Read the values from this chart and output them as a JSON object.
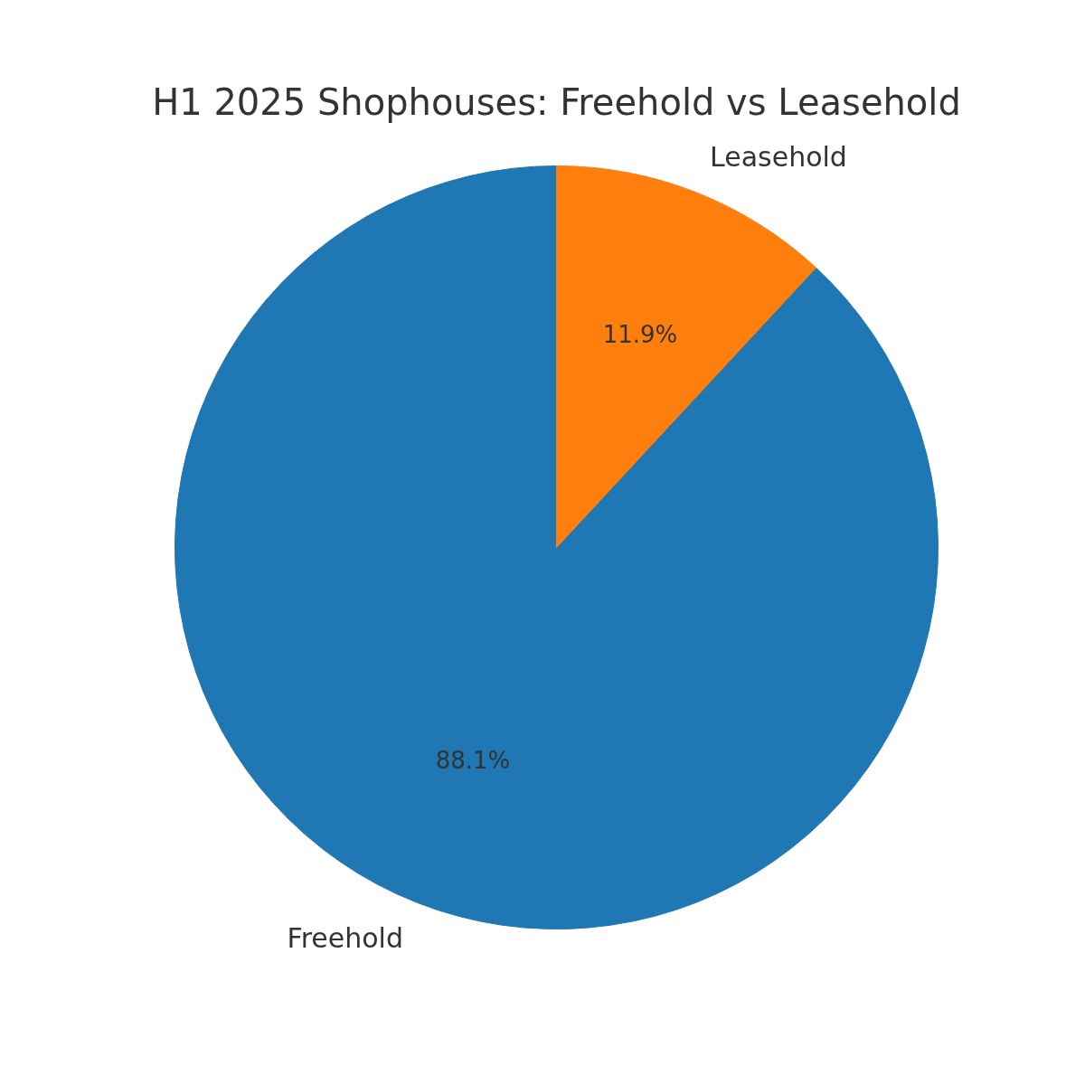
{
  "chart_data": {
    "type": "pie",
    "title": "H1 2025 Shophouses: Freehold vs Leasehold",
    "categories": [
      "Freehold",
      "Leasehold"
    ],
    "values": [
      88.1,
      11.9
    ],
    "colors": [
      "#1f77b4",
      "#ff7f0e"
    ],
    "value_labels": [
      "88.1%",
      "11.9%"
    ]
  }
}
